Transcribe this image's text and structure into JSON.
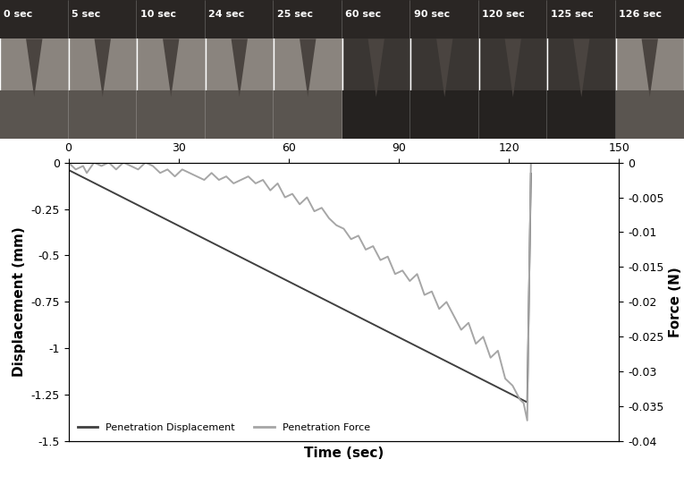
{
  "chart_data": {
    "type": "line",
    "x_label": "Time (sec)",
    "y_label": "Displacement (mm)",
    "y2_label": "Force (N)",
    "xlim": [
      0,
      150
    ],
    "xticks": [
      0,
      30,
      60,
      90,
      120,
      150
    ],
    "ylim": [
      -1.5,
      0
    ],
    "yticks": [
      0,
      -0.25,
      -0.5,
      -0.75,
      -1,
      -1.25,
      -1.5
    ],
    "y2lim": [
      -0.04,
      0
    ],
    "y2ticks": [
      0,
      -0.005,
      -0.01,
      -0.015,
      -0.02,
      -0.025,
      -0.03,
      -0.035,
      -0.04
    ],
    "grid": false,
    "legend": "lower left",
    "series": [
      {
        "name": "Penetration Displacement",
        "color": "#404040",
        "x": [
          0,
          125,
          126
        ],
        "values": [
          -0.04,
          -1.29,
          -0.06
        ]
      },
      {
        "name": "Penetration Force",
        "color": "#a6a6a6",
        "axis": "y2",
        "x": [
          0,
          2,
          4,
          5,
          7,
          9,
          11,
          13,
          15,
          17,
          19,
          21,
          23,
          25,
          27,
          29,
          31,
          33,
          35,
          37,
          39,
          41,
          43,
          45,
          47,
          49,
          51,
          53,
          55,
          57,
          59,
          61,
          63,
          65,
          67,
          69,
          71,
          73,
          75,
          77,
          79,
          81,
          83,
          85,
          87,
          89,
          91,
          93,
          95,
          97,
          99,
          101,
          103,
          105,
          107,
          109,
          111,
          113,
          115,
          117,
          119,
          121,
          123,
          124,
          125,
          126
        ],
        "values": [
          0,
          -0.001,
          -0.0005,
          -0.0015,
          0,
          -0.0005,
          0,
          -0.001,
          0,
          -0.0005,
          -0.001,
          0,
          -0.0005,
          -0.0015,
          -0.001,
          -0.002,
          -0.001,
          -0.0015,
          -0.002,
          -0.0025,
          -0.0015,
          -0.0025,
          -0.002,
          -0.003,
          -0.0025,
          -0.002,
          -0.003,
          -0.0025,
          -0.004,
          -0.003,
          -0.005,
          -0.0045,
          -0.006,
          -0.005,
          -0.007,
          -0.0065,
          -0.008,
          -0.009,
          -0.0095,
          -0.011,
          -0.0105,
          -0.0125,
          -0.012,
          -0.014,
          -0.0135,
          -0.016,
          -0.0155,
          -0.017,
          -0.016,
          -0.019,
          -0.0185,
          -0.021,
          -0.02,
          -0.022,
          -0.024,
          -0.023,
          -0.026,
          -0.025,
          -0.028,
          -0.027,
          -0.031,
          -0.032,
          -0.034,
          -0.0345,
          -0.037,
          0
        ]
      }
    ]
  },
  "image_strip": {
    "labels": [
      "0 sec",
      "5 sec",
      "10 sec",
      "24 sec",
      "25 sec",
      "60 sec",
      "90 sec",
      "120 sec",
      "125 sec",
      "126 sec"
    ]
  }
}
